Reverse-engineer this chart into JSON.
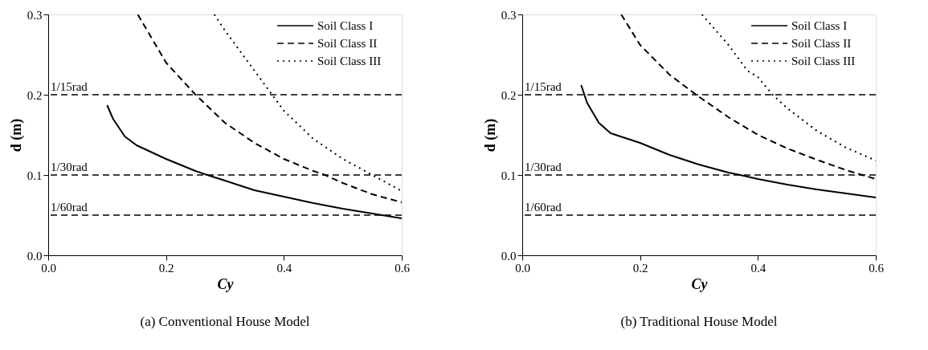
{
  "chart_data": [
    {
      "type": "line",
      "title": "(a) Conventional House Model",
      "xlabel": "Cy",
      "ylabel": "d (m)",
      "xlim": [
        0,
        0.6
      ],
      "ylim": [
        0,
        0.3
      ],
      "xticks": [
        {
          "value": 0,
          "label": "0.0"
        },
        0.2,
        0.4,
        0.6
      ],
      "yticks": [
        {
          "value": 0,
          "label": "0.0"
        },
        0.1,
        0.2,
        0.3
      ],
      "legend": "top right",
      "grid": false,
      "series": [
        {
          "name": "Soil Class I",
          "color": "#000000",
          "line_style": "solid",
          "x": [
            0.1,
            0.11,
            0.13,
            0.15,
            0.2,
            0.25,
            0.27,
            0.3,
            0.35,
            0.4,
            0.45,
            0.5,
            0.55,
            0.6
          ],
          "values": [
            0.187,
            0.17,
            0.148,
            0.137,
            0.12,
            0.105,
            0.1,
            0.093,
            0.081,
            0.073,
            0.065,
            0.058,
            0.052,
            0.046
          ]
        },
        {
          "name": "Soil Class II",
          "color": "#000000",
          "line_style": "dashed",
          "x": [
            0.152,
            0.2,
            0.25,
            0.3,
            0.35,
            0.4,
            0.45,
            0.47,
            0.5,
            0.55,
            0.6
          ],
          "values": [
            0.3,
            0.24,
            0.2,
            0.165,
            0.14,
            0.12,
            0.105,
            0.1,
            0.09,
            0.076,
            0.066
          ]
        },
        {
          "name": "Soil Class III",
          "color": "#000000",
          "line_style": "dotted",
          "x": [
            0.282,
            0.3,
            0.35,
            0.38,
            0.4,
            0.45,
            0.5,
            0.55,
            0.6
          ],
          "values": [
            0.3,
            0.28,
            0.23,
            0.2,
            0.18,
            0.145,
            0.12,
            0.1,
            0.08
          ]
        }
      ],
      "ref_lines": [
        {
          "axis": "y",
          "value": 0.2,
          "label": "1/15rad",
          "color": "#000000",
          "line_style": "dashed"
        },
        {
          "axis": "y",
          "value": 0.1,
          "label": "1/30rad",
          "color": "#000000",
          "line_style": "dashed"
        },
        {
          "axis": "y",
          "value": 0.05,
          "label": "1/60rad",
          "color": "#000000",
          "line_style": "dashed"
        }
      ]
    },
    {
      "type": "line",
      "title": "(b) Traditional House Model",
      "xlabel": "Cy",
      "ylabel": "d (m)",
      "xlim": [
        0,
        0.6
      ],
      "ylim": [
        0,
        0.3
      ],
      "xticks": [
        {
          "value": 0,
          "label": "0.0"
        },
        0.2,
        0.4,
        0.6
      ],
      "yticks": [
        {
          "value": 0,
          "label": "0.0"
        },
        0.1,
        0.2,
        0.3
      ],
      "legend": "top right",
      "grid": false,
      "series": [
        {
          "name": "Soil Class I",
          "color": "#000000",
          "line_style": "solid",
          "x": [
            0.1,
            0.11,
            0.13,
            0.15,
            0.2,
            0.25,
            0.3,
            0.35,
            0.37,
            0.4,
            0.45,
            0.5,
            0.55,
            0.6
          ],
          "values": [
            0.212,
            0.19,
            0.165,
            0.152,
            0.14,
            0.125,
            0.113,
            0.103,
            0.1,
            0.095,
            0.088,
            0.082,
            0.077,
            0.072
          ]
        },
        {
          "name": "Soil Class II",
          "color": "#000000",
          "line_style": "dashed",
          "x": [
            0.168,
            0.2,
            0.25,
            0.295,
            0.35,
            0.4,
            0.45,
            0.5,
            0.55,
            0.6
          ],
          "values": [
            0.3,
            0.262,
            0.225,
            0.2,
            0.172,
            0.15,
            0.133,
            0.119,
            0.106,
            0.095
          ]
        },
        {
          "name": "Soil Class III",
          "color": "#000000",
          "line_style": "dotted",
          "x": [
            0.305,
            0.35,
            0.382,
            0.4,
            0.425,
            0.45,
            0.5,
            0.55,
            0.6
          ],
          "values": [
            0.3,
            0.262,
            0.23,
            0.222,
            0.2,
            0.183,
            0.155,
            0.134,
            0.118
          ]
        }
      ],
      "ref_lines": [
        {
          "axis": "y",
          "value": 0.2,
          "label": "1/15rad",
          "color": "#000000",
          "line_style": "dashed"
        },
        {
          "axis": "y",
          "value": 0.1,
          "label": "1/30rad",
          "color": "#000000",
          "line_style": "dashed"
        },
        {
          "axis": "y",
          "value": 0.05,
          "label": "1/60rad",
          "color": "#000000",
          "line_style": "dashed"
        }
      ]
    }
  ]
}
